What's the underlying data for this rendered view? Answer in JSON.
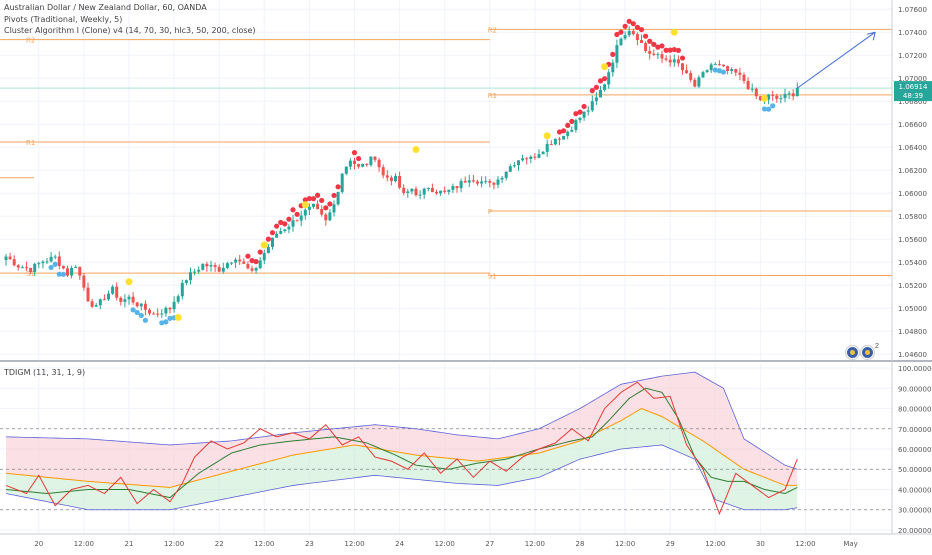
{
  "legend": {
    "symbol": "Australian Dollar / New Zealand Dollar, 60, OANDA",
    "pivots": "Pivots (Traditional, Weekly, 5)",
    "cluster": "Cluster Algorithm I (Clone) v4 (14, 70, 30, hlc3, 50, 200, close)",
    "tdi": "TDIGM (11, 31, 1, 9)"
  },
  "badge_count": "2",
  "price_badge": {
    "price": "1.06914",
    "countdown": "48:39"
  },
  "colors": {
    "up": "#26a69a",
    "down": "#ef5350",
    "pivot": "#f5a25d",
    "dot_red": "#f23645",
    "dot_blue": "#56b4e9",
    "dot_yellow": "#ffe030",
    "rsi": "#e53935",
    "signal": "#2e7d32",
    "ma": "#ff9800",
    "band": "#5b61d9",
    "arrow": "#3f6bd6"
  },
  "chart_data": [
    {
      "type": "candlestick",
      "title": "Australian Dollar / New Zealand Dollar, 60, OANDA",
      "y_ticks": [
        "1.07600",
        "1.07400",
        "1.07200",
        "1.07000",
        "1.06800",
        "1.06600",
        "1.06400",
        "1.06200",
        "1.06000",
        "1.05800",
        "1.05600",
        "1.05400",
        "1.05200",
        "1.05000",
        "1.04800",
        "1.04600"
      ],
      "ylim": [
        1.0455,
        1.0768
      ],
      "x_ticks": [
        "20",
        "12:00",
        "21",
        "12:00",
        "22",
        "12:00",
        "23",
        "12:00",
        "24",
        "12:00",
        "27",
        "12:00",
        "28",
        "12:00",
        "29",
        "12:00",
        "30",
        "12:00",
        "May"
      ],
      "last_price": 1.06914,
      "pivots": [
        {
          "label": "R2",
          "value": 1.07425
        },
        {
          "label": "R1",
          "value": 1.06855
        },
        {
          "label": "P",
          "value": 1.05845
        },
        {
          "label": "S1",
          "value": 1.05285
        }
      ],
      "previous_week_pivots": [
        {
          "label": "R2",
          "value": 1.07335
        },
        {
          "label": "R1",
          "value": 1.06445
        },
        {
          "label": "S1",
          "value": 1.05305
        }
      ],
      "previous_week_extra_level": 1.06135,
      "close_path": [
        [
          0,
          1.0545
        ],
        [
          3,
          1.0537
        ],
        [
          6,
          1.0534
        ],
        [
          9,
          1.0541
        ],
        [
          12,
          1.0544
        ],
        [
          15,
          1.053
        ],
        [
          17,
          1.0538
        ],
        [
          18,
          1.0528
        ],
        [
          20,
          1.0508
        ],
        [
          22,
          1.05
        ],
        [
          24,
          1.051
        ],
        [
          26,
          1.0516
        ],
        [
          28,
          1.0506
        ],
        [
          30,
          1.0509
        ],
        [
          33,
          1.0501
        ],
        [
          36,
          1.0495
        ],
        [
          40,
          1.05
        ],
        [
          44,
          1.0526
        ],
        [
          48,
          1.0538
        ],
        [
          52,
          1.0534
        ],
        [
          56,
          1.0545
        ],
        [
          60,
          1.053
        ],
        [
          63,
          1.0548
        ],
        [
          66,
          1.0565
        ],
        [
          70,
          1.0575
        ],
        [
          72,
          1.0582
        ],
        [
          75,
          1.0588
        ],
        [
          78,
          1.0575
        ],
        [
          80,
          1.059
        ],
        [
          82,
          1.0618
        ],
        [
          84,
          1.063
        ],
        [
          86,
          1.0622
        ],
        [
          88,
          1.0626
        ],
        [
          90,
          1.0632
        ],
        [
          92,
          1.0615
        ],
        [
          95,
          1.0612
        ],
        [
          97,
          1.0598
        ],
        [
          99,
          1.0604
        ],
        [
          101,
          1.0597
        ],
        [
          103,
          1.0606
        ],
        [
          105,
          1.0602
        ],
        [
          107,
          1.06
        ],
        [
          110,
          1.0606
        ],
        [
          113,
          1.0614
        ],
        [
          116,
          1.061
        ],
        [
          118,
          1.0607
        ],
        [
          120,
          1.0612
        ],
        [
          122,
          1.062
        ],
        [
          124,
          1.0627
        ],
        [
          126,
          1.0632
        ],
        [
          128,
          1.063
        ],
        [
          130,
          1.0636
        ],
        [
          132,
          1.0642
        ],
        [
          134,
          1.0648
        ],
        [
          136,
          1.065
        ],
        [
          138,
          1.0658
        ],
        [
          140,
          1.0666
        ],
        [
          142,
          1.0673
        ],
        [
          144,
          1.0682
        ],
        [
          146,
          1.0696
        ],
        [
          148,
          1.0716
        ],
        [
          150,
          1.0737
        ],
        [
          152,
          1.0743
        ],
        [
          154,
          1.0736
        ],
        [
          156,
          1.0724
        ],
        [
          158,
          1.072
        ],
        [
          160,
          1.0717
        ],
        [
          162,
          1.0716
        ],
        [
          164,
          1.0712
        ],
        [
          166,
          1.0702
        ],
        [
          168,
          1.0693
        ],
        [
          170,
          1.0703
        ],
        [
          172,
          1.0712
        ],
        [
          174,
          1.071
        ],
        [
          176,
          1.0706
        ],
        [
          178,
          1.0704
        ],
        [
          180,
          1.0698
        ],
        [
          182,
          1.0688
        ],
        [
          184,
          1.068
        ],
        [
          186,
          1.0684
        ],
        [
          188,
          1.0682
        ],
        [
          190,
          1.0684
        ],
        [
          192,
          1.0687
        ],
        [
          193,
          1.06914
        ]
      ],
      "bar_count": 194,
      "projection_arrow": {
        "from": {
          "bar": 193,
          "price": 1.06914
        },
        "to": {
          "bar": 212,
          "price": 1.074
        }
      }
    },
    {
      "type": "line",
      "title": "TDIGM (11, 31, 1, 9)",
      "y_ticks": [
        "100.00000",
        "90.00000",
        "80.00000",
        "70.00000",
        "60.00000",
        "50.00000",
        "40.00000",
        "30.00000",
        "20.00000"
      ],
      "ylim": [
        18,
        102
      ],
      "levels": [
        70,
        50,
        30
      ],
      "series": [
        {
          "key": "upper_band",
          "points": [
            [
              0,
              66
            ],
            [
              20,
              65
            ],
            [
              40,
              62
            ],
            [
              55,
              64
            ],
            [
              70,
              68
            ],
            [
              90,
              72
            ],
            [
              100,
              70
            ],
            [
              110,
              67
            ],
            [
              120,
              65
            ],
            [
              130,
              70
            ],
            [
              140,
              80
            ],
            [
              150,
              92
            ],
            [
              160,
              96
            ],
            [
              168,
              98
            ],
            [
              175,
              90
            ],
            [
              180,
              65
            ],
            [
              190,
              52
            ],
            [
              193,
              50
            ]
          ]
        },
        {
          "key": "lower_band",
          "points": [
            [
              0,
              38
            ],
            [
              20,
              30
            ],
            [
              40,
              30
            ],
            [
              55,
              36
            ],
            [
              70,
              42
            ],
            [
              90,
              47
            ],
            [
              100,
              45
            ],
            [
              110,
              43
            ],
            [
              120,
              42
            ],
            [
              130,
              46
            ],
            [
              140,
              55
            ],
            [
              150,
              60
            ],
            [
              160,
              62
            ],
            [
              168,
              55
            ],
            [
              173,
              35
            ],
            [
              180,
              30
            ],
            [
              190,
              30
            ],
            [
              193,
              31
            ]
          ]
        },
        {
          "key": "ma",
          "points": [
            [
              0,
              48
            ],
            [
              20,
              44
            ],
            [
              40,
              41
            ],
            [
              55,
              49
            ],
            [
              70,
              57
            ],
            [
              85,
              62
            ],
            [
              100,
              57
            ],
            [
              115,
              54
            ],
            [
              130,
              58
            ],
            [
              140,
              64
            ],
            [
              150,
              74
            ],
            [
              155,
              80
            ],
            [
              160,
              76
            ],
            [
              170,
              64
            ],
            [
              180,
              50
            ],
            [
              190,
              42
            ],
            [
              193,
              42
            ]
          ]
        },
        {
          "key": "signal",
          "points": [
            [
              0,
              40
            ],
            [
              10,
              38
            ],
            [
              20,
              40
            ],
            [
              30,
              40
            ],
            [
              40,
              36
            ],
            [
              47,
              48
            ],
            [
              55,
              58
            ],
            [
              62,
              62
            ],
            [
              70,
              64
            ],
            [
              80,
              66
            ],
            [
              88,
              63
            ],
            [
              95,
              57
            ],
            [
              100,
              52
            ],
            [
              108,
              50
            ],
            [
              115,
              53
            ],
            [
              122,
              55
            ],
            [
              130,
              60
            ],
            [
              138,
              64
            ],
            [
              143,
              66
            ],
            [
              147,
              74
            ],
            [
              152,
              85
            ],
            [
              156,
              90
            ],
            [
              160,
              88
            ],
            [
              164,
              75
            ],
            [
              168,
              56
            ],
            [
              172,
              46
            ],
            [
              176,
              44
            ],
            [
              180,
              44
            ],
            [
              185,
              40
            ],
            [
              190,
              38
            ],
            [
              193,
              41
            ]
          ]
        },
        {
          "key": "rsi",
          "points": [
            [
              0,
              42
            ],
            [
              5,
              38
            ],
            [
              8,
              47
            ],
            [
              12,
              32
            ],
            [
              16,
              40
            ],
            [
              20,
              42
            ],
            [
              24,
              38
            ],
            [
              28,
              46
            ],
            [
              32,
              33
            ],
            [
              36,
              40
            ],
            [
              40,
              34
            ],
            [
              43,
              43
            ],
            [
              46,
              56
            ],
            [
              50,
              64
            ],
            [
              54,
              60
            ],
            [
              58,
              63
            ],
            [
              62,
              70
            ],
            [
              66,
              66
            ],
            [
              70,
              68
            ],
            [
              74,
              65
            ],
            [
              78,
              72
            ],
            [
              82,
              62
            ],
            [
              86,
              66
            ],
            [
              90,
              56
            ],
            [
              94,
              54
            ],
            [
              98,
              50
            ],
            [
              102,
              58
            ],
            [
              106,
              48
            ],
            [
              110,
              55
            ],
            [
              114,
              46
            ],
            [
              118,
              54
            ],
            [
              122,
              49
            ],
            [
              126,
              56
            ],
            [
              130,
              60
            ],
            [
              134,
              63
            ],
            [
              138,
              70
            ],
            [
              142,
              64
            ],
            [
              146,
              80
            ],
            [
              150,
              88
            ],
            [
              154,
              93
            ],
            [
              158,
              85
            ],
            [
              162,
              86
            ],
            [
              166,
              62
            ],
            [
              170,
              50
            ],
            [
              174,
              28
            ],
            [
              178,
              48
            ],
            [
              182,
              42
            ],
            [
              186,
              36
            ],
            [
              190,
              40
            ],
            [
              193,
              55
            ]
          ]
        }
      ]
    }
  ]
}
